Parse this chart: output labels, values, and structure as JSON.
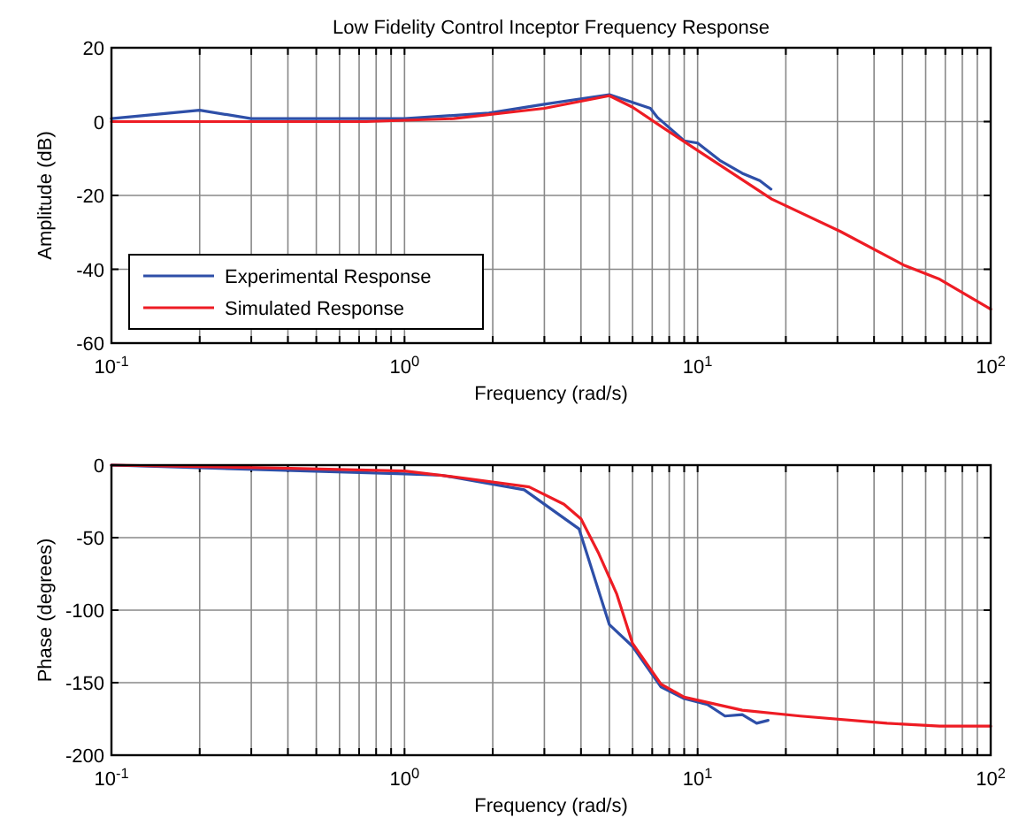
{
  "chart_data": [
    {
      "type": "line",
      "title": "Low Fidelity Control Inceptor Frequency Response",
      "xlabel": "Frequency (rad/s)",
      "ylabel": "Amplitude (dB)",
      "log": "x",
      "grid": true,
      "legend": "bottom left",
      "line_style": "solid",
      "marker": "none",
      "xlim": [
        0.1,
        100
      ],
      "xticks": [
        {
          "value": 0.1,
          "label": "10$^{-1}$"
        },
        {
          "value": 0.2,
          "label": null
        },
        {
          "value": 0.3,
          "label": null
        },
        {
          "value": 0.4,
          "label": null
        },
        {
          "value": 0.5,
          "label": null
        },
        {
          "value": 0.6,
          "label": null
        },
        {
          "value": 0.7,
          "label": null
        },
        {
          "value": 0.8,
          "label": null
        },
        {
          "value": 0.9,
          "label": null
        },
        {
          "value": 1,
          "label": "10$^{0}$"
        },
        {
          "value": 2,
          "label": null
        },
        {
          "value": 3,
          "label": null
        },
        {
          "value": 4,
          "label": null
        },
        {
          "value": 5,
          "label": null
        },
        {
          "value": 6,
          "label": null
        },
        {
          "value": 7,
          "label": null
        },
        {
          "value": 8,
          "label": null
        },
        {
          "value": 9,
          "label": null
        },
        {
          "value": 10,
          "label": "10$^{1}$"
        },
        {
          "value": 20,
          "label": null
        },
        {
          "value": 30,
          "label": null
        },
        {
          "value": 40,
          "label": null
        },
        {
          "value": 50,
          "label": null
        },
        {
          "value": 60,
          "label": null
        },
        {
          "value": 70,
          "label": null
        },
        {
          "value": 80,
          "label": null
        },
        {
          "value": 90,
          "label": null
        },
        {
          "value": 100,
          "label": "10$^{2}$"
        }
      ],
      "ylim": [
        -60,
        20
      ],
      "yticks": [
        -60,
        -40,
        -20,
        0,
        20
      ],
      "series": [
        {
          "name": "Experimental Response",
          "color": "#2e4fa8",
          "x": [
            0.1,
            0.2,
            0.3,
            1,
            1.94,
            3.0,
            5.0,
            6.9,
            7.3,
            8.1,
            9.0,
            10,
            11.9,
            14.2,
            16.3,
            17.8
          ],
          "values": [
            0.8,
            3.1,
            0.8,
            0.8,
            2.3,
            4.7,
            7.3,
            3.6,
            1.1,
            -2,
            -5.2,
            -5.8,
            -10.5,
            -14,
            -16,
            -18.3
          ]
        },
        {
          "name": "Simulated Response",
          "color": "#ee1c24",
          "x": [
            0.1,
            0.74,
            1.47,
            3.0,
            5.0,
            6.0,
            7.6,
            10,
            17.9,
            30.6,
            50.9,
            67,
            100
          ],
          "values": [
            0,
            0,
            0.8,
            3.6,
            7,
            3.9,
            -1.6,
            -7.8,
            -21,
            -29.7,
            -39,
            -42.7,
            -50.8
          ]
        }
      ]
    },
    {
      "type": "line",
      "xlabel": "Frequency (rad/s)",
      "ylabel": "Phase (degrees)",
      "log": "x",
      "grid": true,
      "line_style": "solid",
      "marker": "none",
      "xlim": [
        0.1,
        100
      ],
      "xticks": [
        {
          "value": 0.1,
          "label": "10$^{-1}$"
        },
        {
          "value": 0.2,
          "label": null
        },
        {
          "value": 0.3,
          "label": null
        },
        {
          "value": 0.4,
          "label": null
        },
        {
          "value": 0.5,
          "label": null
        },
        {
          "value": 0.6,
          "label": null
        },
        {
          "value": 0.7,
          "label": null
        },
        {
          "value": 0.8,
          "label": null
        },
        {
          "value": 0.9,
          "label": null
        },
        {
          "value": 1,
          "label": "10$^{0}$"
        },
        {
          "value": 2,
          "label": null
        },
        {
          "value": 3,
          "label": null
        },
        {
          "value": 4,
          "label": null
        },
        {
          "value": 5,
          "label": null
        },
        {
          "value": 6,
          "label": null
        },
        {
          "value": 7,
          "label": null
        },
        {
          "value": 8,
          "label": null
        },
        {
          "value": 9,
          "label": null
        },
        {
          "value": 10,
          "label": "10$^{1}$"
        },
        {
          "value": 20,
          "label": null
        },
        {
          "value": 30,
          "label": null
        },
        {
          "value": 40,
          "label": null
        },
        {
          "value": 50,
          "label": null
        },
        {
          "value": 60,
          "label": null
        },
        {
          "value": 70,
          "label": null
        },
        {
          "value": 80,
          "label": null
        },
        {
          "value": 90,
          "label": null
        },
        {
          "value": 100,
          "label": "10$^{2}$"
        }
      ],
      "ylim": [
        -200,
        0
      ],
      "yticks": [
        -200,
        -150,
        -100,
        -50,
        0
      ],
      "series": [
        {
          "color": "#2e4fa8",
          "x": [
            0.1,
            1,
            1.34,
            2.56,
            3.94,
            5.0,
            6.0,
            7.5,
            9.0,
            10.8,
            12.4,
            14.2,
            15.9,
            17.4
          ],
          "values": [
            0,
            -6,
            -7,
            -17,
            -44,
            -110,
            -125,
            -153,
            -161,
            -165,
            -173,
            -172,
            -178,
            -176
          ]
        },
        {
          "color": "#ee1c24",
          "x": [
            0.1,
            0.38,
            1,
            1.6,
            2.66,
            3.5,
            4.0,
            4.6,
            5.3,
            6.0,
            7.5,
            9.0,
            14.2,
            22.4,
            44.3,
            67,
            100
          ],
          "values": [
            0,
            -2,
            -4,
            -9,
            -15,
            -27,
            -37,
            -61,
            -89,
            -123,
            -151,
            -160,
            -169,
            -173,
            -178,
            -180,
            -180
          ]
        }
      ]
    }
  ]
}
